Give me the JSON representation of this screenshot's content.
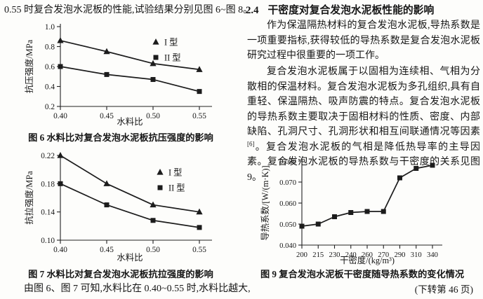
{
  "document": {
    "left_column": {
      "intro_text": "0.55 时复合发泡水泥板的性能,试验结果分别见图 6~图 8。",
      "fig6_caption": "图 6  水料比对复合发泡水泥板抗压强度的影响",
      "fig7_caption": "图 7  水料比对复合发泡水泥板抗拉强度的影响",
      "closing_text": "由图 6、图 7 可知,水料比在 0.40~0.55 时,水料比越大,"
    },
    "right_column": {
      "section_number": "2.4",
      "section_title": "干密度对复合发泡水泥板性能的影响",
      "para1": "作为保温隔热材料的复合发泡水泥板,导热系数是一项重要指标,获得较低的导热系数是复合发泡水泥板研究过程中很重要的一项工作。",
      "para2_before_ref": "复合发泡水泥板属于以固相为连续相、气相为分散相的保温材料。复合发泡水泥板为多孔组织,具有自重轻、保温隔热、吸声防震的特点。复合发泡水泥板的导热系数主要取决于固相材料的性质、密度、内部缺陷、孔洞尺寸、孔洞形状和相互间联通情况等因素",
      "para2_ref_marker": "[6]",
      "para2_after_ref": "。复合发泡水泥板的气相是降低热导率的主导因素。复合发泡水泥板的导热系数与干密度的关系见图 9。",
      "fig9_caption": "图 9  复合发泡水泥板干密度随导热系数的变化情况",
      "continuation_note": "(下转第 46 页)"
    }
  },
  "chart_data": [
    {
      "id": "fig6",
      "type": "line",
      "title": "图 6 水料比对复合发泡水泥板抗压强度的影响",
      "xlabel": "水料比",
      "ylabel": "抗压强度/MPa",
      "categories": [
        "0.40",
        "0.45",
        "0.50",
        "0.55"
      ],
      "ylim": [
        0.2,
        1.0
      ],
      "y_ticks": [
        0.2,
        0.4,
        0.6,
        0.8,
        1.0
      ],
      "y_tick_labels": [
        "0.2",
        "0.4",
        "0.6",
        "0.8",
        "1.0"
      ],
      "grid": false,
      "legend_position": "top-right-inside",
      "series": [
        {
          "name": "I 型",
          "marker": "triangle",
          "values": [
            0.86,
            0.75,
            0.63,
            0.57
          ]
        },
        {
          "name": "II 型",
          "marker": "square",
          "values": [
            0.6,
            0.52,
            0.47,
            0.35
          ]
        }
      ]
    },
    {
      "id": "fig7",
      "type": "line",
      "title": "图 7 水料比对复合发泡水泥板抗拉强度的影响",
      "xlabel": "水料比",
      "ylabel": "抗拉强度/MPa",
      "categories": [
        "0.40",
        "0.45",
        "0.50",
        "0.55"
      ],
      "ylim": [
        0.1,
        0.22
      ],
      "y_ticks": [
        0.1,
        0.14,
        0.18,
        0.22
      ],
      "y_tick_labels": [
        "0.10",
        "0.14",
        "0.18",
        "0.22"
      ],
      "grid": false,
      "legend_position": "top-right-inside",
      "series": [
        {
          "name": "I 型",
          "marker": "triangle",
          "values": [
            0.22,
            0.18,
            0.15,
            0.14
          ]
        },
        {
          "name": "II 型",
          "marker": "square",
          "values": [
            0.18,
            0.15,
            0.128,
            0.118
          ]
        }
      ]
    },
    {
      "id": "fig9",
      "type": "line",
      "title": "图 9 复合发泡水泥板干密度随导热系数的变化情况",
      "xlabel": "干密度/(kg/m³)",
      "ylabel": "导热系数/[W/(m·K)]",
      "categories": [
        "200",
        "215",
        "230",
        "240",
        "260",
        "270",
        "290",
        "310",
        "340"
      ],
      "ylim": [
        0.04,
        0.08
      ],
      "y_ticks": [
        0.04,
        0.05,
        0.06,
        0.07,
        0.08
      ],
      "y_tick_labels": [
        "0.040",
        "0.050",
        "0.060",
        "0.070",
        "0.080"
      ],
      "grid": false,
      "legend_position": "none",
      "series": [
        {
          "name": "",
          "marker": "square",
          "values": [
            0.049,
            0.05,
            0.0535,
            0.0555,
            0.056,
            0.056,
            0.072,
            0.0765,
            0.078
          ]
        }
      ]
    }
  ]
}
